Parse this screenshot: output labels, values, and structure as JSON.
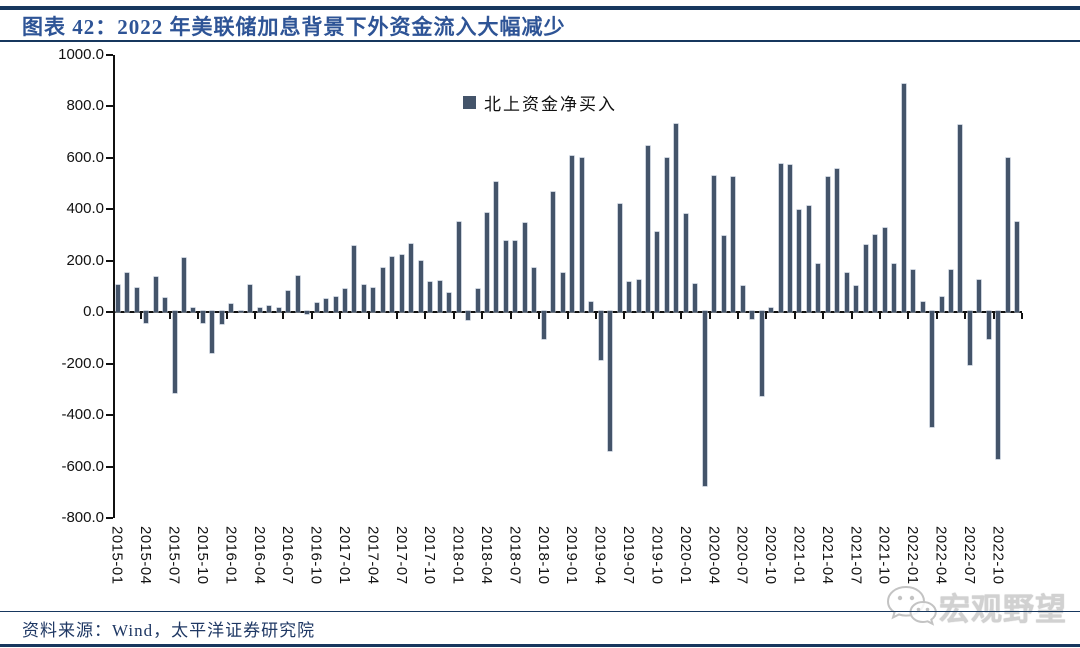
{
  "title": "图表 42：2022 年美联储加息背景下外资金流入大幅减少",
  "legend": {
    "label": "北上资金净买入",
    "marker_color": "#44546A"
  },
  "source": {
    "text": "资料来源：Wind，太平洋证券研究院"
  },
  "watermark": {
    "icon": "wechat-icon",
    "text": "宏观野望"
  },
  "colors": {
    "bar": "#44546A",
    "rule_navy": "#17375E",
    "title_blue": "#2E5496",
    "source_blue": "#1F3864",
    "axis_black": "#111111"
  },
  "chart_data": {
    "type": "bar",
    "title": "图表 42：2022 年美联储加息背景下外资金流入大幅减少",
    "series_name": "北上资金净买入",
    "legend_position": "top-center",
    "grid": false,
    "ylim": [
      -800,
      1000
    ],
    "ytick_step": 200,
    "yticks": [
      "1000.0",
      "800.0",
      "600.0",
      "400.0",
      "200.0",
      "0.0",
      "-200.0",
      "-400.0",
      "-600.0",
      "-800.0"
    ],
    "xtick_label_every": 3,
    "xlabel": "",
    "ylabel": "",
    "x": [
      "2015-01",
      "2015-02",
      "2015-03",
      "2015-04",
      "2015-05",
      "2015-06",
      "2015-07",
      "2015-08",
      "2015-09",
      "2015-10",
      "2015-11",
      "2015-12",
      "2016-01",
      "2016-02",
      "2016-03",
      "2016-04",
      "2016-05",
      "2016-06",
      "2016-07",
      "2016-08",
      "2016-09",
      "2016-10",
      "2016-11",
      "2016-12",
      "2017-01",
      "2017-02",
      "2017-03",
      "2017-04",
      "2017-05",
      "2017-06",
      "2017-07",
      "2017-08",
      "2017-09",
      "2017-10",
      "2017-11",
      "2017-12",
      "2018-01",
      "2018-02",
      "2018-03",
      "2018-04",
      "2018-05",
      "2018-06",
      "2018-07",
      "2018-08",
      "2018-09",
      "2018-10",
      "2018-11",
      "2018-12",
      "2019-01",
      "2019-02",
      "2019-03",
      "2019-04",
      "2019-05",
      "2019-06",
      "2019-07",
      "2019-08",
      "2019-09",
      "2019-10",
      "2019-11",
      "2019-12",
      "2020-01",
      "2020-02",
      "2020-03",
      "2020-04",
      "2020-05",
      "2020-06",
      "2020-07",
      "2020-08",
      "2020-09",
      "2020-10",
      "2020-11",
      "2020-12",
      "2021-01",
      "2021-02",
      "2021-03",
      "2021-04",
      "2021-05",
      "2021-06",
      "2021-07",
      "2021-08",
      "2021-09",
      "2021-10",
      "2021-11",
      "2021-12",
      "2022-01",
      "2022-02",
      "2022-03",
      "2022-04",
      "2022-05",
      "2022-06",
      "2022-07",
      "2022-08",
      "2022-09",
      "2022-10",
      "2022-11",
      "2022-12"
    ],
    "values": [
      105,
      150,
      95,
      -45,
      135,
      55,
      -320,
      210,
      15,
      -45,
      -165,
      -50,
      30,
      5,
      105,
      15,
      25,
      15,
      80,
      140,
      -10,
      35,
      50,
      60,
      90,
      255,
      105,
      95,
      170,
      215,
      220,
      265,
      200,
      115,
      120,
      75,
      350,
      -35,
      90,
      385,
      505,
      275,
      275,
      345,
      170,
      -110,
      465,
      150,
      605,
      600,
      40,
      -190,
      -545,
      420,
      115,
      125,
      645,
      310,
      600,
      730,
      380,
      110,
      -680,
      530,
      295,
      525,
      100,
      -30,
      -330,
      15,
      575,
      570,
      395,
      410,
      185,
      525,
      555,
      150,
      100,
      260,
      300,
      325,
      185,
      885,
      165,
      40,
      -450,
      60,
      165,
      725,
      -210,
      125,
      -110,
      -575,
      600,
      350
    ]
  }
}
